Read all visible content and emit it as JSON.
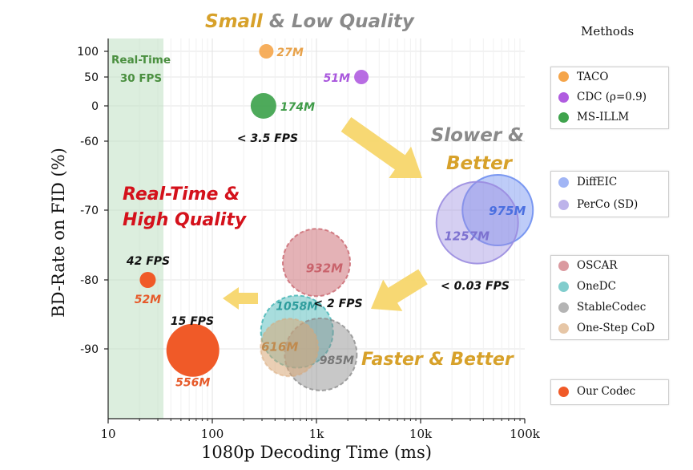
{
  "chart_data": {
    "type": "scatter",
    "title": "",
    "xlabel": "1080p Decoding Time (ms)",
    "ylabel": "BD-Rate on FID (%)",
    "x_scale": "log",
    "xlim": [
      10,
      100000
    ],
    "x_ticks": [
      10,
      100,
      1000,
      10000,
      100000
    ],
    "x_tick_labels": [
      "10",
      "100",
      "1k",
      "10k",
      "100k"
    ],
    "y_tick_labels": [
      "100",
      "50",
      "0",
      "-60",
      "-70",
      "-80",
      "-90"
    ],
    "y_ticks": [
      100,
      50,
      0,
      -60,
      -70,
      -80,
      -90
    ],
    "y_scale_note": "broken axis",
    "grid": true,
    "legend_title": "Methods",
    "legend_placement": "right, outside",
    "legend_groups": [
      [
        "TACO",
        "CDC (ρ=0.9)",
        "MS-ILLM"
      ],
      [
        "DiffEIC",
        "PerCo (SD)"
      ],
      [
        "OSCAR",
        "OneDC",
        "StableCodec",
        "One-Step CoD"
      ],
      [
        "Our Codec"
      ]
    ],
    "series": [
      {
        "name": "TACO",
        "x": 330,
        "y": 100,
        "params": "27M",
        "color": "#f5a54a"
      },
      {
        "name": "CDC (ρ=0.9)",
        "x": 2700,
        "y": 50,
        "params": "51M",
        "color": "#b05ce0"
      },
      {
        "name": "MS-ILLM",
        "x": 310,
        "y": 0,
        "params": "174M",
        "color": "#3fa34d"
      },
      {
        "name": "DiffEIC",
        "x": 55000,
        "y": -70,
        "params": "975M",
        "color": "#6f8ff0"
      },
      {
        "name": "PerCo (SD)",
        "x": 35000,
        "y": -71.8,
        "params": "1257M",
        "color": "#9a8ce0"
      },
      {
        "name": "OSCAR",
        "x": 1000,
        "y": -77.5,
        "params": "932M",
        "color": "#c9656e"
      },
      {
        "name": "OneDC",
        "x": 650,
        "y": -87.5,
        "params": "1058M",
        "color": "#3fb3b3"
      },
      {
        "name": "StableCodec",
        "x": 1100,
        "y": -90.8,
        "params": "985M",
        "color": "#8d8d8d"
      },
      {
        "name": "One-Step CoD",
        "x": 550,
        "y": -89.8,
        "params": "616M",
        "color": "#d9a877"
      },
      {
        "name": "Our Codec",
        "x": 24,
        "y": -80,
        "params": "52M",
        "color": "#f05a28"
      },
      {
        "name": "Our Codec",
        "x": 65,
        "y": -90.2,
        "params": "556M",
        "color": "#f05a28"
      }
    ],
    "annotations": {
      "top_title": [
        "Small",
        " & Low Quality"
      ],
      "slower_better": [
        "Slower &",
        "Better"
      ],
      "realtime_hq": [
        "Real-Time &",
        "High Quality"
      ],
      "faster_better": "Faster & Better",
      "realtime_band": [
        "Real-Time",
        "30 FPS"
      ],
      "fps_35": "< 3.5 FPS",
      "fps_003": "< 0.03 FPS",
      "fps_2": "< 2 FPS",
      "fps_42": "42 FPS",
      "fps_15": "15 FPS"
    }
  }
}
